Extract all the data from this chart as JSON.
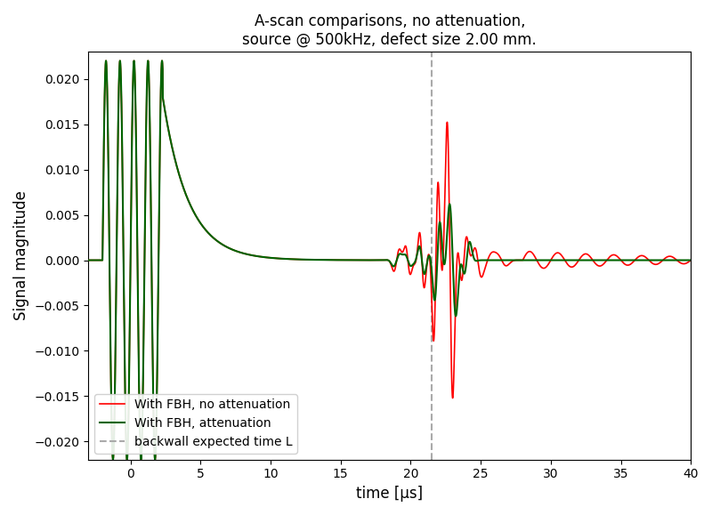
{
  "title": "A-scan comparisons, no attenuation,\nsource @ 500kHz, defect size 2.00 mm.",
  "xlabel": "time [µs]",
  "ylabel": "Signal magnitude",
  "xlim": [
    -3,
    40
  ],
  "ylim": [
    -0.022,
    0.023
  ],
  "backwall_time": 21.5,
  "color_no_atten": "#ff0000",
  "color_atten": "#006400",
  "color_dashed": "#aaaaaa",
  "legend_labels": [
    "With FBH, no attenuation",
    "With FBH, attenuation",
    "backwall expected time L"
  ],
  "figsize": [
    8.0,
    5.79
  ],
  "dpi": 100
}
